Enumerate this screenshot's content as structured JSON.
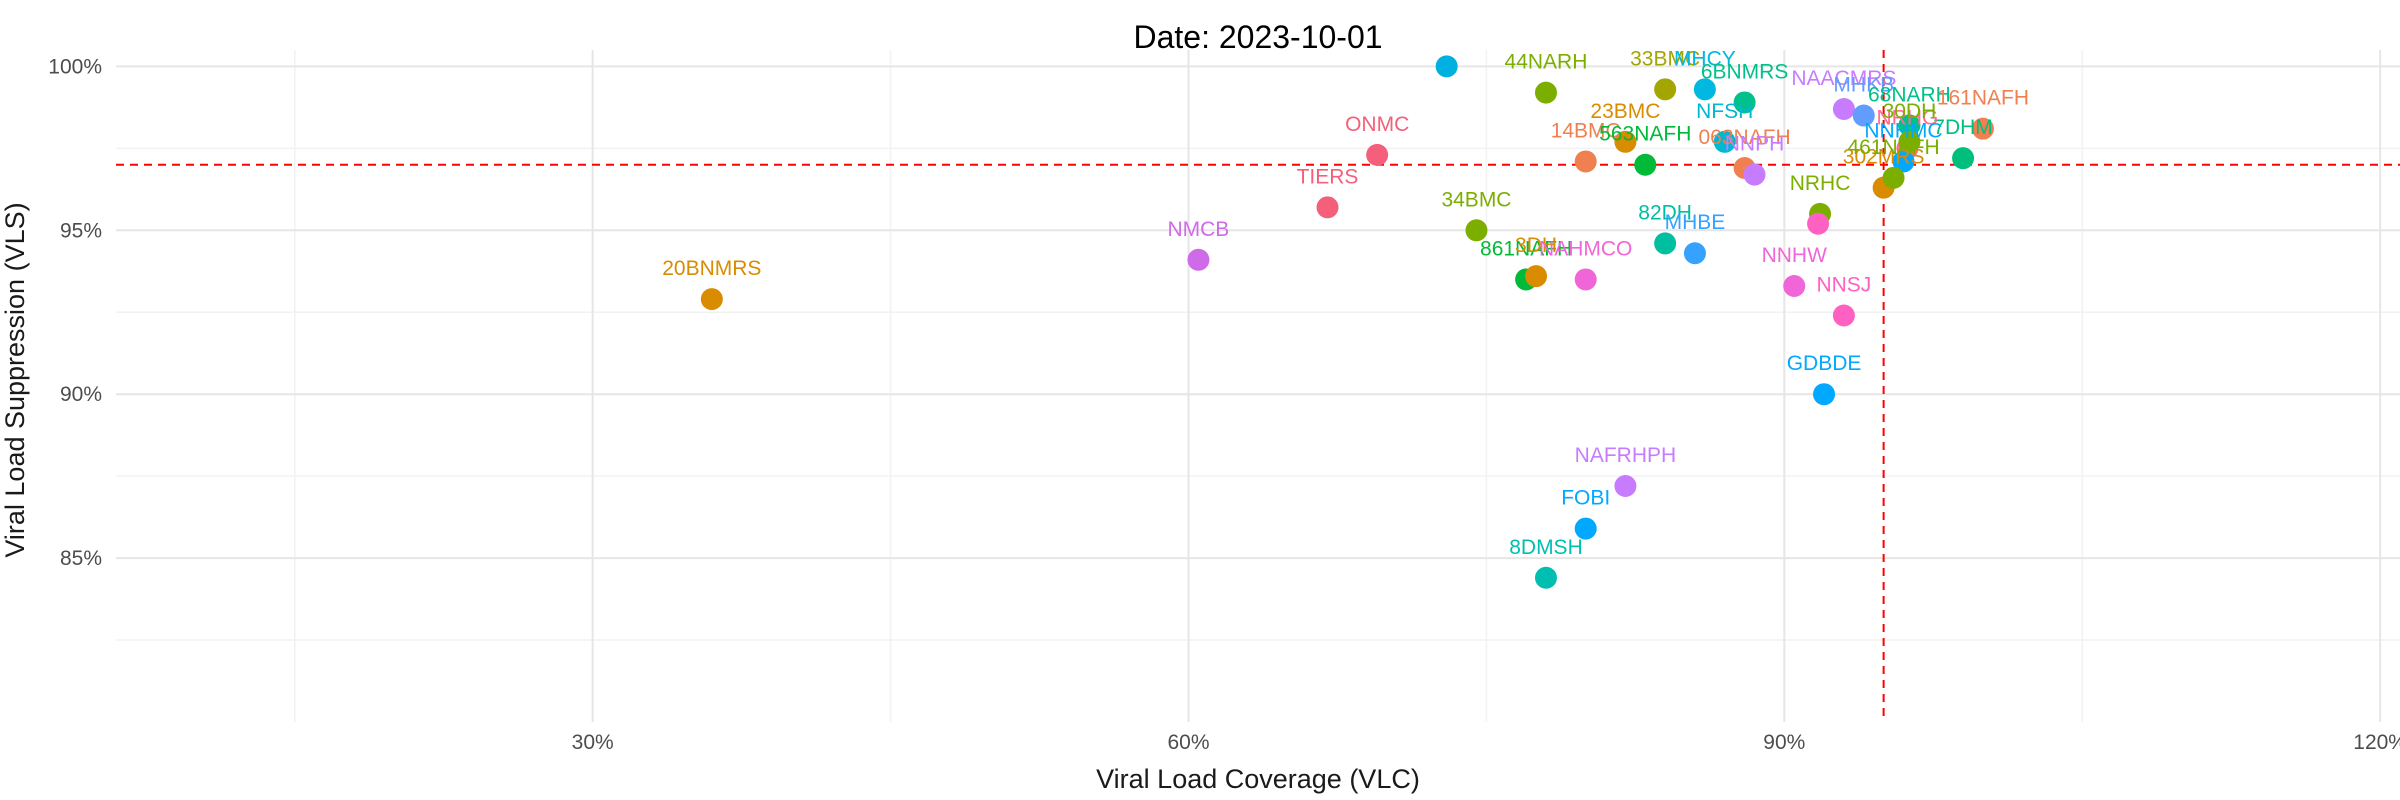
{
  "chart_data": {
    "type": "scatter",
    "title": "Date: 2023-10-01",
    "xlabel": "Viral Load Coverage (VLC)",
    "ylabel": "Viral Load Suppression (VLS)",
    "xlim": [
      0.06,
      1.21
    ],
    "ylim": [
      0.8,
      1.005
    ],
    "x_ticks": [
      {
        "value": 0.3,
        "label": "30%"
      },
      {
        "value": 0.6,
        "label": "60%"
      },
      {
        "value": 0.9,
        "label": "90%"
      },
      {
        "value": 1.2,
        "label": "120%"
      }
    ],
    "y_ticks": [
      {
        "value": 0.85,
        "label": "85%"
      },
      {
        "value": 0.9,
        "label": "90%"
      },
      {
        "value": 0.95,
        "label": "95%"
      },
      {
        "value": 1.0,
        "label": "100%"
      }
    ],
    "x_minor": [
      0.15,
      0.45,
      0.75,
      1.05
    ],
    "y_minor": [
      0.825,
      0.875,
      0.925,
      0.975
    ],
    "grid": true,
    "legend": "none",
    "reference_lines": {
      "vertical_x": 0.95,
      "horizontal_y": 0.97,
      "style": "dashed",
      "color": "#ff0000"
    },
    "points": [
      {
        "label": "20BNMRS",
        "x": 0.36,
        "y": 0.929,
        "color": "#d98c00",
        "show_label": true
      },
      {
        "label": "NMCB",
        "x": 0.605,
        "y": 0.941,
        "color": "#cf6be8",
        "show_label": true
      },
      {
        "label": "TIERS",
        "x": 0.67,
        "y": 0.957,
        "color": "#f4607b",
        "show_label": true
      },
      {
        "label": "ONMC",
        "x": 0.695,
        "y": 0.973,
        "color": "#f4607b",
        "show_label": true
      },
      {
        "label": "",
        "x": 0.73,
        "y": 1.0,
        "color": "#00b0e0",
        "show_label": false
      },
      {
        "label": "44NARH",
        "x": 0.78,
        "y": 0.992,
        "color": "#7cae00",
        "show_label": true
      },
      {
        "label": "34BMC",
        "x": 0.745,
        "y": 0.95,
        "color": "#7cae00",
        "show_label": true
      },
      {
        "label": "861NAFH",
        "x": 0.77,
        "y": 0.935,
        "color": "#00ba38",
        "show_label": true
      },
      {
        "label": "3DH",
        "x": 0.775,
        "y": 0.936,
        "color": "#d98c00",
        "show_label": true
      },
      {
        "label": "NAHMCO",
        "x": 0.8,
        "y": 0.935,
        "color": "#f066d9",
        "show_label": true
      },
      {
        "label": "14BMC",
        "x": 0.8,
        "y": 0.971,
        "color": "#f08050",
        "show_label": true
      },
      {
        "label": "23BMC",
        "x": 0.82,
        "y": 0.977,
        "color": "#d98c00",
        "show_label": true
      },
      {
        "label": "563NAFH",
        "x": 0.83,
        "y": 0.97,
        "color": "#00ba38",
        "show_label": true
      },
      {
        "label": "33BMC",
        "x": 0.84,
        "y": 0.993,
        "color": "#a3a500",
        "show_label": true
      },
      {
        "label": "MHCY",
        "x": 0.86,
        "y": 0.993,
        "color": "#00b8e0",
        "show_label": true
      },
      {
        "label": "6BNMRS",
        "x": 0.88,
        "y": 0.989,
        "color": "#00c08b",
        "show_label": true
      },
      {
        "label": "NFSH",
        "x": 0.87,
        "y": 0.977,
        "color": "#00b8d0",
        "show_label": true
      },
      {
        "label": "063NAFH",
        "x": 0.88,
        "y": 0.969,
        "color": "#f08050",
        "show_label": true
      },
      {
        "label": "NNPH",
        "x": 0.885,
        "y": 0.967,
        "color": "#c77cff",
        "show_label": true
      },
      {
        "label": "82DH",
        "x": 0.84,
        "y": 0.946,
        "color": "#00bfa0",
        "show_label": true
      },
      {
        "label": "MHBE",
        "x": 0.855,
        "y": 0.943,
        "color": "#35a2ff",
        "show_label": true
      },
      {
        "label": "NAACMRS",
        "x": 0.93,
        "y": 0.987,
        "color": "#c77cff",
        "show_label": true
      },
      {
        "label": "MHKB",
        "x": 0.94,
        "y": 0.985,
        "color": "#619cff",
        "show_label": true
      },
      {
        "label": "68NARH",
        "x": 0.963,
        "y": 0.982,
        "color": "#00c08b",
        "show_label": true
      },
      {
        "label": "161NAFH",
        "x": 1.0,
        "y": 0.981,
        "color": "#f08050",
        "show_label": true
      },
      {
        "label": "7DHM",
        "x": 0.99,
        "y": 0.972,
        "color": "#00bf7d",
        "show_label": true
      },
      {
        "label": "NRHG",
        "x": 0.962,
        "y": 0.975,
        "color": "#ff6c91",
        "show_label": true
      },
      {
        "label": "NNHMC",
        "x": 0.96,
        "y": 0.971,
        "color": "#00a9ff",
        "show_label": true
      },
      {
        "label": "30DH",
        "x": 0.963,
        "y": 0.977,
        "color": "#7cae00",
        "show_label": true
      },
      {
        "label": "302MRS",
        "x": 0.95,
        "y": 0.963,
        "color": "#d98c00",
        "show_label": true
      },
      {
        "label": "461NAFH",
        "x": 0.955,
        "y": 0.966,
        "color": "#7cae00",
        "show_label": true
      },
      {
        "label": "NRHC",
        "x": 0.918,
        "y": 0.955,
        "color": "#7cae00",
        "show_label": true
      },
      {
        "label": "",
        "x": 0.917,
        "y": 0.952,
        "color": "#ff61c3",
        "show_label": false
      },
      {
        "label": "NNHW",
        "x": 0.905,
        "y": 0.933,
        "color": "#f066d9",
        "show_label": true
      },
      {
        "label": "NNSJ",
        "x": 0.93,
        "y": 0.924,
        "color": "#ff61c3",
        "show_label": true
      },
      {
        "label": "GDBDE",
        "x": 0.92,
        "y": 0.9,
        "color": "#00a9ff",
        "show_label": true
      },
      {
        "label": "NAFRHPH",
        "x": 0.82,
        "y": 0.872,
        "color": "#c77cff",
        "show_label": true
      },
      {
        "label": "FOBI",
        "x": 0.8,
        "y": 0.859,
        "color": "#00a9ff",
        "show_label": true
      },
      {
        "label": "8DMSH",
        "x": 0.78,
        "y": 0.844,
        "color": "#00bfb0",
        "show_label": true
      }
    ]
  }
}
